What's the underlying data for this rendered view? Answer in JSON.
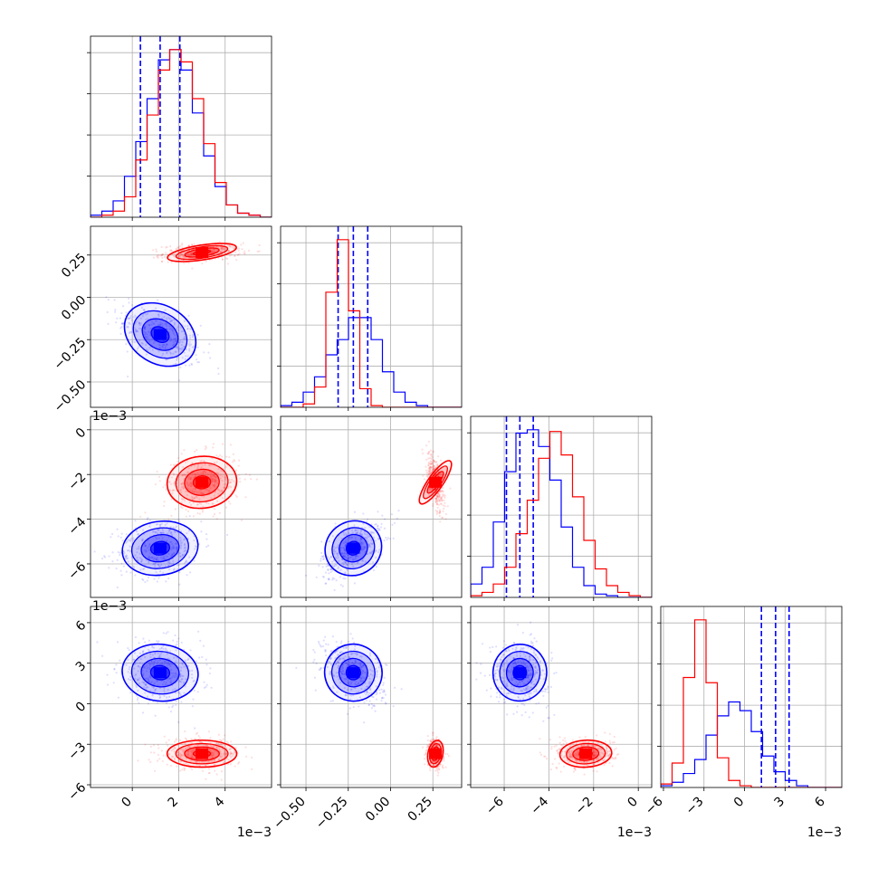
{
  "chart_data": {
    "type": "corner",
    "grid": true,
    "params": [
      {
        "id": "p0",
        "range": [
          -1.8,
          6.0
        ],
        "ticks": [
          0,
          2,
          4
        ],
        "tick_labels": [
          "0",
          "2",
          "4"
        ],
        "offset_text": "1e−3"
      },
      {
        "id": "p1",
        "range": [
          -0.65,
          0.42
        ],
        "ticks": [
          -0.5,
          -0.25,
          0.0,
          0.25
        ],
        "tick_labels": [
          "−0.50",
          "−0.25",
          "0.00",
          "0.25"
        ],
        "offset_text": ""
      },
      {
        "id": "p2",
        "range": [
          -7.5,
          0.6
        ],
        "ticks": [
          -6,
          -4,
          -2,
          0
        ],
        "tick_labels": [
          "−6",
          "−4",
          "−2",
          "0"
        ],
        "offset_text": "1e−3"
      },
      {
        "id": "p3",
        "range": [
          -6.2,
          7.2
        ],
        "ticks": [
          -6,
          -3,
          0,
          3,
          6
        ],
        "tick_labels": [
          "−6",
          "−3",
          "0",
          "3",
          "6"
        ],
        "offset_text": "1e−3"
      }
    ],
    "series": [
      {
        "color": "#0000ff",
        "mean": [
          1.2,
          -0.22,
          -5.3,
          2.3
        ],
        "sd": [
          0.82,
          0.085,
          0.6,
          1.05
        ],
        "quantiles": [
          [
            0.35,
            1.2,
            2.05
          ],
          [
            -0.31,
            -0.22,
            -0.135
          ],
          [
            -5.9,
            -5.3,
            -4.7
          ],
          [
            1.25,
            2.3,
            3.3
          ]
        ],
        "hist_counts": [
          [
            1,
            3,
            8,
            20,
            37,
            58,
            77,
            82,
            72,
            51,
            30,
            15,
            6,
            2,
            1,
            0
          ],
          [
            1,
            3,
            9,
            18,
            31,
            40,
            53,
            53,
            40,
            21,
            9,
            3,
            1,
            0,
            0,
            0
          ],
          [
            8,
            18,
            45,
            75,
            98,
            100,
            90,
            70,
            42,
            18,
            7,
            2,
            1,
            0,
            0,
            0
          ],
          [
            1,
            3,
            8,
            16,
            30,
            41,
            49,
            44,
            32,
            18,
            9,
            4,
            1,
            0,
            0,
            0
          ]
        ]
      },
      {
        "color": "#ff0000",
        "mean": [
          3.0,
          0.265,
          -2.35,
          -3.7
        ],
        "sd": [
          0.75,
          0.022,
          0.58,
          0.5
        ],
        "hist_counts": [
          [
            0,
            1,
            3,
            10,
            28,
            50,
            72,
            82,
            76,
            58,
            36,
            17,
            6,
            2,
            1,
            0
          ],
          [
            0,
            0,
            2,
            12,
            68,
            99,
            57,
            11,
            1,
            0,
            0,
            0,
            0,
            0,
            0,
            0
          ],
          [
            1,
            3,
            8,
            18,
            38,
            58,
            83,
            99,
            85,
            60,
            34,
            17,
            7,
            3,
            1,
            0
          ],
          [
            2,
            14,
            63,
            96,
            60,
            17,
            4,
            1,
            0,
            0,
            0,
            0,
            0,
            0,
            0,
            0
          ]
        ]
      }
    ]
  }
}
